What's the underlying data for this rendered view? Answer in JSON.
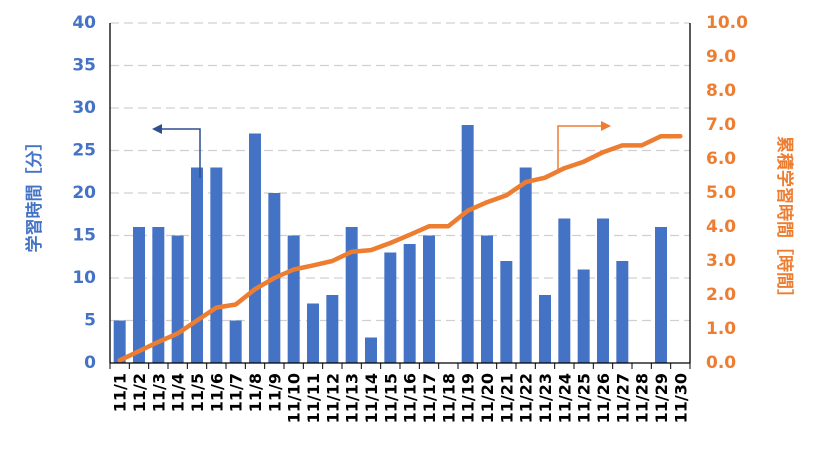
{
  "colors": {
    "bar": "#4472C4",
    "line": "#ED7D31",
    "grid": "#D0D0D0",
    "x_tick": "#000000"
  },
  "chart_data": {
    "type": "bar+line",
    "title": "",
    "categories": [
      "11/1",
      "11/2",
      "11/3",
      "11/4",
      "11/5",
      "11/6",
      "11/7",
      "11/8",
      "11/9",
      "11/10",
      "11/11",
      "11/12",
      "11/13",
      "11/14",
      "11/15",
      "11/16",
      "11/17",
      "11/18",
      "11/19",
      "11/20",
      "11/21",
      "11/22",
      "11/23",
      "11/24",
      "11/25",
      "11/26",
      "11/27",
      "11/28",
      "11/29",
      "11/30"
    ],
    "series": [
      {
        "kind": "bar",
        "axis": "left",
        "values": [
          5,
          16,
          16,
          15,
          23,
          23,
          5,
          27,
          20,
          15,
          7,
          8,
          16,
          3,
          13,
          14,
          15,
          0,
          28,
          15,
          12,
          23,
          8,
          17,
          11,
          17,
          12,
          0,
          16,
          0
        ]
      },
      {
        "kind": "line",
        "axis": "right",
        "values": [
          0.08,
          0.35,
          0.62,
          0.87,
          1.25,
          1.63,
          1.72,
          2.17,
          2.5,
          2.75,
          2.87,
          3.0,
          3.27,
          3.32,
          3.53,
          3.77,
          4.02,
          4.02,
          4.48,
          4.73,
          4.93,
          5.32,
          5.45,
          5.73,
          5.92,
          6.2,
          6.4,
          6.4,
          6.67,
          6.67
        ]
      }
    ],
    "y_left": {
      "label": "学習時間［分］",
      "ylim": [
        0,
        40
      ],
      "ticks": [
        "0",
        "5",
        "10",
        "15",
        "20",
        "25",
        "30",
        "35",
        "40"
      ]
    },
    "y_right": {
      "label": "累積学習時間［時間］",
      "ylim": [
        0,
        10
      ],
      "ticks": [
        "0.0",
        "1.0",
        "2.0",
        "3.0",
        "4.0",
        "5.0",
        "6.0",
        "7.0",
        "8.0",
        "9.0",
        "10.0"
      ]
    },
    "grid": true,
    "legend": "none",
    "annotations": [
      {
        "type": "arrow",
        "points_to": "left-axis",
        "color": "#2F4F8F"
      },
      {
        "type": "arrow",
        "points_to": "right-axis",
        "color": "#ED7D31"
      }
    ]
  }
}
